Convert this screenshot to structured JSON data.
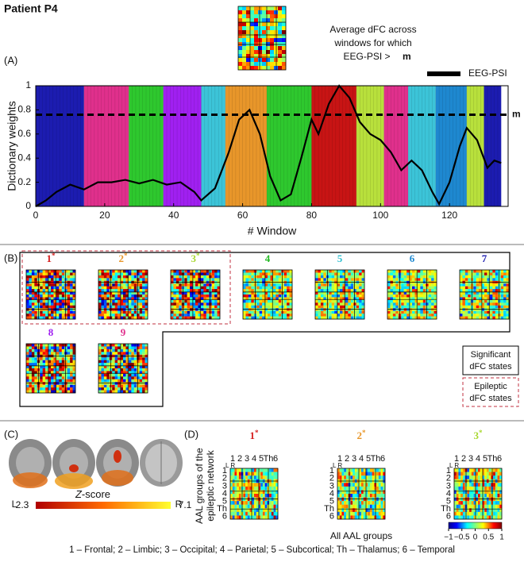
{
  "header": {
    "title": "Patient P4"
  },
  "panel_a": {
    "label": "(A)",
    "inset_text": [
      "Average dFC across",
      "windows for which",
      "EEG-PSI >"
    ],
    "inset_bold": "m"
  },
  "chart_data": {
    "type": "line",
    "xlabel": "# Window",
    "ylabel": "Dictionary weights",
    "xlim": [
      0,
      137
    ],
    "ylim": [
      0,
      1
    ],
    "xticks": [
      0,
      20,
      40,
      60,
      80,
      100,
      120
    ],
    "yticks": [
      0,
      0.2,
      0.4,
      0.6,
      0.8,
      1
    ],
    "x": [
      0,
      3,
      6,
      10,
      14,
      18,
      22,
      26,
      30,
      34,
      38,
      42,
      46,
      48,
      52,
      56,
      59,
      62,
      65,
      68,
      71,
      74,
      77,
      80,
      82,
      85,
      88,
      91,
      94,
      97,
      100,
      103,
      106,
      109,
      112,
      115,
      117,
      120,
      123,
      125,
      128,
      131,
      133,
      135
    ],
    "series": [
      {
        "name": "EEG-PSI",
        "color": "#000000",
        "values": [
          0,
          0.05,
          0.12,
          0.18,
          0.14,
          0.2,
          0.2,
          0.22,
          0.19,
          0.22,
          0.18,
          0.2,
          0.12,
          0.05,
          0.15,
          0.45,
          0.72,
          0.8,
          0.6,
          0.25,
          0.05,
          0.1,
          0.4,
          0.72,
          0.6,
          0.85,
          1.0,
          0.9,
          0.7,
          0.6,
          0.55,
          0.45,
          0.3,
          0.38,
          0.3,
          0.12,
          0.02,
          0.2,
          0.5,
          0.65,
          0.55,
          0.32,
          0.38,
          0.36
        ]
      }
    ],
    "threshold": {
      "label": "m",
      "value": 0.76
    },
    "blocks": [
      {
        "start": 0,
        "end": 14,
        "color": "#1c1cb0"
      },
      {
        "start": 14,
        "end": 27,
        "color": "#e0308c"
      },
      {
        "start": 27,
        "end": 37,
        "color": "#2ec82e"
      },
      {
        "start": 37,
        "end": 48,
        "color": "#a020f0"
      },
      {
        "start": 48,
        "end": 55,
        "color": "#3cc4d8"
      },
      {
        "start": 55,
        "end": 67,
        "color": "#e8962a"
      },
      {
        "start": 67,
        "end": 80,
        "color": "#2ec82e"
      },
      {
        "start": 80,
        "end": 93,
        "color": "#c81414"
      },
      {
        "start": 93,
        "end": 101,
        "color": "#b8e03c"
      },
      {
        "start": 101,
        "end": 108,
        "color": "#e0308c"
      },
      {
        "start": 108,
        "end": 116,
        "color": "#3cc4d8"
      },
      {
        "start": 116,
        "end": 125,
        "color": "#1e88d0"
      },
      {
        "start": 125,
        "end": 130,
        "color": "#b8e03c"
      },
      {
        "start": 130,
        "end": 135,
        "color": "#1c1cb0"
      }
    ]
  },
  "panel_b": {
    "label": "(B)",
    "states": [
      {
        "label": "1",
        "star": "*",
        "color": "#d62020"
      },
      {
        "label": "2",
        "star": "*",
        "color": "#e8962a"
      },
      {
        "label": "3",
        "star": "*",
        "color": "#a8d830"
      },
      {
        "label": "4",
        "color": "#20b820"
      },
      {
        "label": "5",
        "color": "#30c0d0"
      },
      {
        "label": "6",
        "color": "#1e88d0"
      },
      {
        "label": "7",
        "color": "#1c1cb0"
      },
      {
        "label": "8",
        "color": "#a020f0"
      },
      {
        "label": "9",
        "color": "#e0308c"
      }
    ],
    "legend_significant": [
      "Significant",
      "dFC states"
    ],
    "legend_epileptic": [
      "Epileptic",
      "dFC states"
    ]
  },
  "panel_c": {
    "label": "(C)",
    "left": "L",
    "right": "R",
    "cbar_var": "Z",
    "cbar_rest": "-score",
    "cbar_min": "2.3",
    "cbar_max": "7.1"
  },
  "panel_d": {
    "label": "(D)",
    "groups": [
      "1",
      "2",
      "3",
      "4",
      "5",
      "Th",
      "6"
    ],
    "hemis": "L R",
    "ylabel": [
      "AAL groups of the",
      "epileptic network"
    ],
    "xlabel": "All AAL groups",
    "clim": [
      -1,
      1
    ],
    "cticks": [
      {
        "value": -1,
        "label": "−1"
      },
      {
        "value": -0.5,
        "label": "−0.5"
      },
      0,
      0.5,
      1
    ]
  },
  "footer": "1 – Frontal; 2 – Limbic; 3 – Occipital; 4 – Parietal; 5 – Subcortical; Th – Thalamus; 6 – Temporal"
}
